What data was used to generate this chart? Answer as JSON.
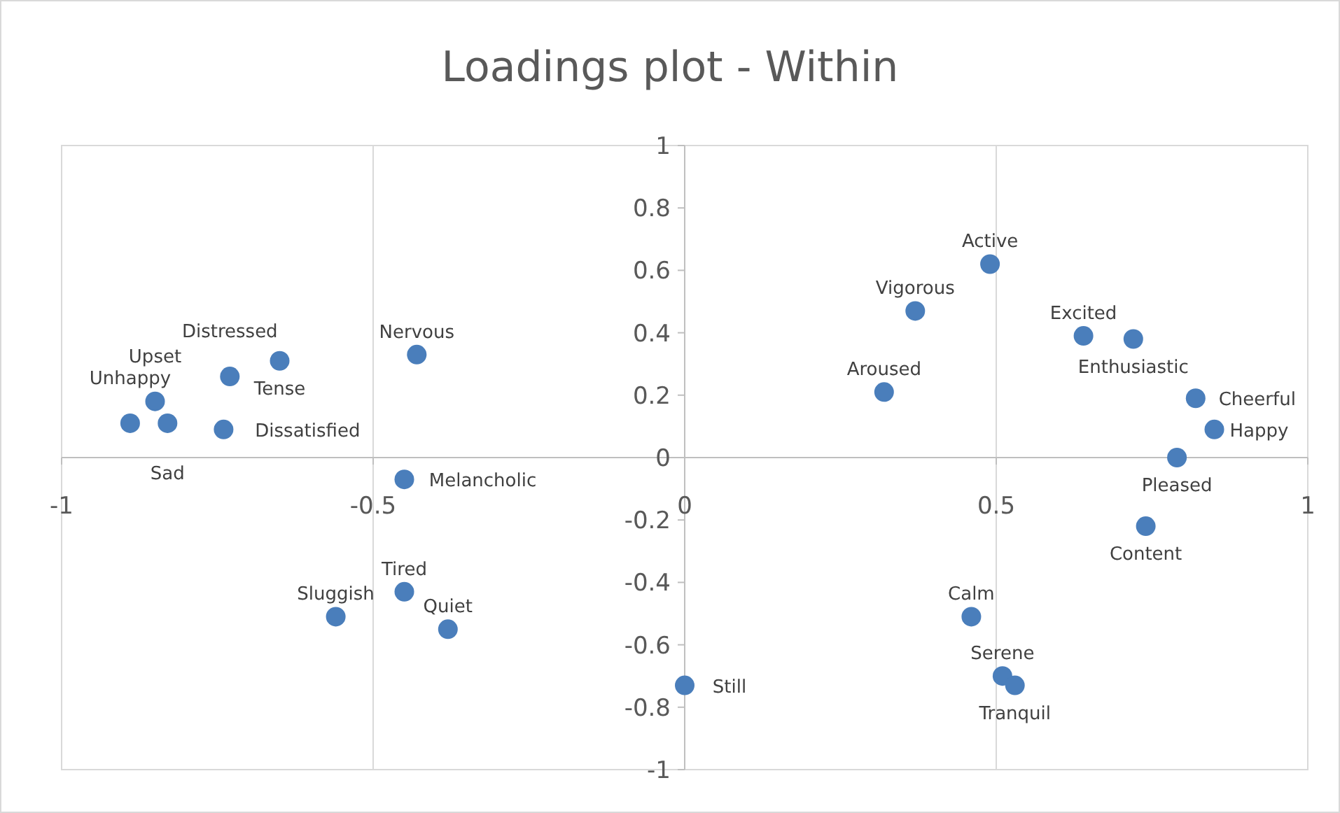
{
  "chart_data": {
    "type": "scatter",
    "title": "Loadings plot - Within",
    "series": [
      {
        "color": "#4a7ebb",
        "x": [
          -0.89,
          -0.83,
          -0.85,
          -0.74,
          -0.73,
          -0.65,
          -0.43,
          -0.45,
          -0.56,
          -0.45,
          -0.38,
          0.0,
          0.46,
          0.51,
          0.53,
          0.32,
          0.37,
          0.49,
          0.64,
          0.72,
          0.82,
          0.85,
          0.79,
          0.74
        ],
        "values": [
          0.11,
          0.11,
          0.18,
          0.09,
          0.26,
          0.31,
          0.33,
          -0.07,
          -0.51,
          -0.43,
          -0.55,
          -0.73,
          -0.51,
          -0.7,
          -0.73,
          0.21,
          0.47,
          0.62,
          0.39,
          0.38,
          0.19,
          0.09,
          0.0,
          -0.22
        ]
      }
    ],
    "annotations": [
      {
        "text": "Unhappy",
        "x": -0.89,
        "y": 0.11
      },
      {
        "text": "Sad",
        "x": -0.83,
        "y": 0.11
      },
      {
        "text": "Upset",
        "x": -0.85,
        "y": 0.18
      },
      {
        "text": "Dissatisfied",
        "x": -0.74,
        "y": 0.09
      },
      {
        "text": "Distressed",
        "x": -0.73,
        "y": 0.26
      },
      {
        "text": "Tense",
        "x": -0.65,
        "y": 0.31
      },
      {
        "text": "Nervous",
        "x": -0.43,
        "y": 0.33
      },
      {
        "text": "Melancholic",
        "x": -0.45,
        "y": -0.07
      },
      {
        "text": "Sluggish",
        "x": -0.56,
        "y": -0.51
      },
      {
        "text": "Tired",
        "x": -0.45,
        "y": -0.43
      },
      {
        "text": "Quiet",
        "x": -0.38,
        "y": -0.55
      },
      {
        "text": "Still",
        "x": 0.0,
        "y": -0.73
      },
      {
        "text": "Calm",
        "x": 0.46,
        "y": -0.51
      },
      {
        "text": "Serene",
        "x": 0.51,
        "y": -0.7
      },
      {
        "text": "Tranquil",
        "x": 0.53,
        "y": -0.73
      },
      {
        "text": "Aroused",
        "x": 0.32,
        "y": 0.21
      },
      {
        "text": "Vigorous",
        "x": 0.37,
        "y": 0.47
      },
      {
        "text": "Active",
        "x": 0.49,
        "y": 0.62
      },
      {
        "text": "Excited",
        "x": 0.64,
        "y": 0.39
      },
      {
        "text": "Enthusiastic",
        "x": 0.72,
        "y": 0.38
      },
      {
        "text": "Cheerful",
        "x": 0.82,
        "y": 0.19
      },
      {
        "text": "Happy",
        "x": 0.85,
        "y": 0.09
      },
      {
        "text": "Pleased",
        "x": 0.79,
        "y": 0.0
      },
      {
        "text": "Content",
        "x": 0.74,
        "y": -0.22
      }
    ],
    "xlim": [
      -1,
      1
    ],
    "ylim": [
      -1,
      1
    ],
    "xticks": [
      -1,
      -0.5,
      0,
      0.5,
      1
    ],
    "yticks": [
      -1,
      -0.8,
      -0.6,
      -0.4,
      -0.2,
      0,
      0.2,
      0.4,
      0.6,
      0.8,
      1
    ],
    "grid": "x",
    "marker": "circle"
  }
}
